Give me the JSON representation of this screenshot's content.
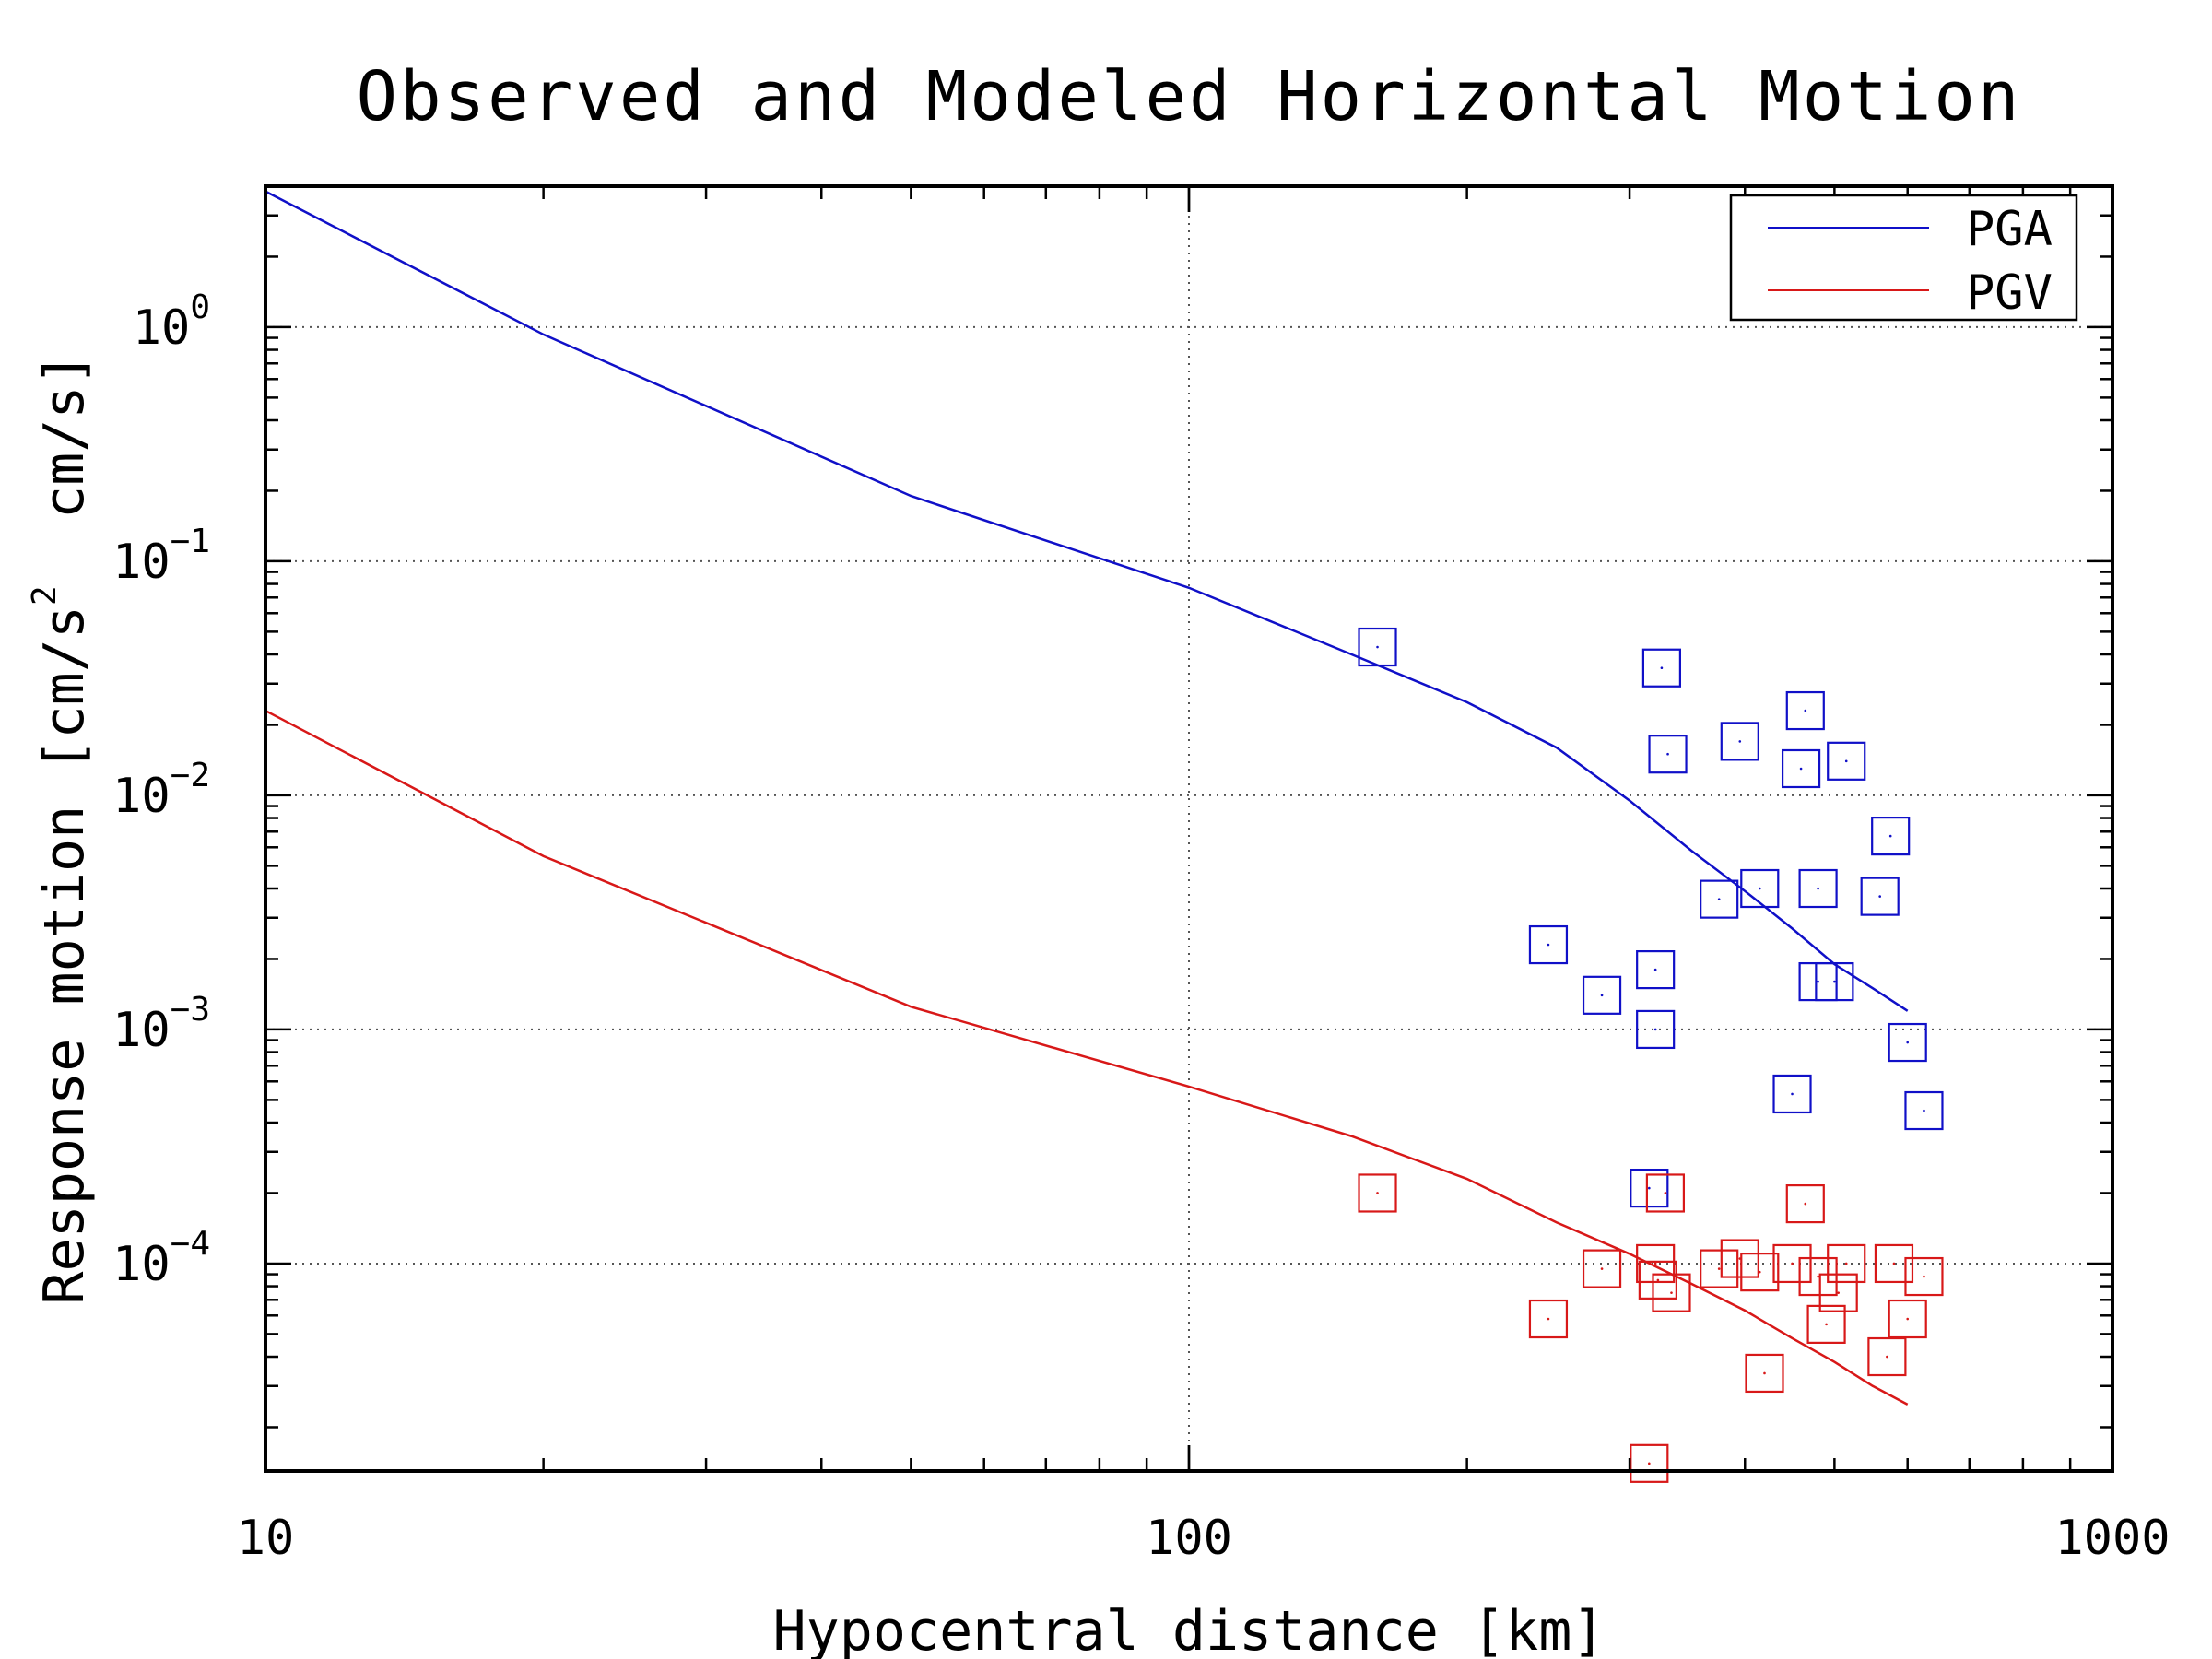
{
  "chart_data": {
    "type": "scatter",
    "title": "Observed and Modeled Horizontal Motion",
    "xlabel": "Hypocentral distance [km]",
    "ylabel": "Response motion [cm/s² cm/s]",
    "ylabel_parts": {
      "prefix": "Response motion [cm/s",
      "sup": "2",
      "suffix": "  cm/s]"
    },
    "xscale": "log",
    "yscale": "log",
    "xlim": [
      10,
      1000
    ],
    "ylim": [
      1.3e-05,
      4.0
    ],
    "x_ticks": [
      "10",
      "100",
      "1000"
    ],
    "y_ticks": [
      {
        "value": 1,
        "base": "10",
        "exp": "0"
      },
      {
        "value": 0.1,
        "base": "10",
        "exp": "−1"
      },
      {
        "value": 0.01,
        "base": "10",
        "exp": "−2"
      },
      {
        "value": 0.001,
        "base": "10",
        "exp": "−3"
      },
      {
        "value": 0.0001,
        "base": "10",
        "exp": "−4"
      }
    ],
    "grid": true,
    "legend_position": "top-right",
    "series": [
      {
        "name": "PGA",
        "color": "#1010c8",
        "model_line": {
          "x": [
            10,
            20,
            50,
            100,
            150,
            200,
            250,
            300,
            350,
            400,
            450,
            500,
            550,
            600
          ],
          "y": [
            3.8,
            0.93,
            0.19,
            0.077,
            0.04,
            0.025,
            0.016,
            0.0095,
            0.0058,
            0.0039,
            0.0027,
            0.0019,
            0.0015,
            0.0012
          ]
        },
        "observed": {
          "x": [
            160,
            325,
            330,
            245,
            280,
            320,
            320,
            375,
            395,
            415,
            450,
            465,
            460,
            480,
            480,
            500,
            515,
            560,
            575,
            600,
            625,
            315
          ],
          "y": [
            0.043,
            0.035,
            0.015,
            0.0023,
            0.0014,
            0.0018,
            0.001,
            0.0036,
            0.017,
            0.004,
            0.00053,
            0.023,
            0.013,
            0.004,
            0.0016,
            0.0016,
            0.014,
            0.0037,
            0.0067,
            0.00088,
            0.00045,
            0.00021
          ]
        }
      },
      {
        "name": "PGV",
        "color": "#d81818",
        "model_line": {
          "x": [
            10,
            20,
            50,
            100,
            150,
            200,
            250,
            300,
            350,
            400,
            450,
            500,
            550,
            600
          ],
          "y": [
            0.023,
            0.0055,
            0.00125,
            0.00057,
            0.00035,
            0.00023,
            0.00015,
            0.00011,
            8.2e-05,
            6.3e-05,
            4.8e-05,
            3.8e-05,
            3e-05,
            2.5e-05
          ]
        },
        "observed": {
          "x": [
            160,
            245,
            280,
            315,
            320,
            322,
            328,
            333,
            375,
            395,
            420,
            450,
            465,
            480,
            490,
            505,
            515,
            570,
            580,
            600,
            625,
            415
          ],
          "y": [
            0.0002,
            5.8e-05,
            9.5e-05,
            1.4e-05,
            0.0001,
            8.5e-05,
            0.0002,
            7.5e-05,
            9.5e-05,
            0.000105,
            3.4e-05,
            0.0001,
            0.00018,
            8.8e-05,
            5.5e-05,
            7.5e-05,
            0.0001,
            4e-05,
            0.0001,
            5.8e-05,
            8.8e-05,
            9.2e-05
          ]
        }
      }
    ]
  }
}
